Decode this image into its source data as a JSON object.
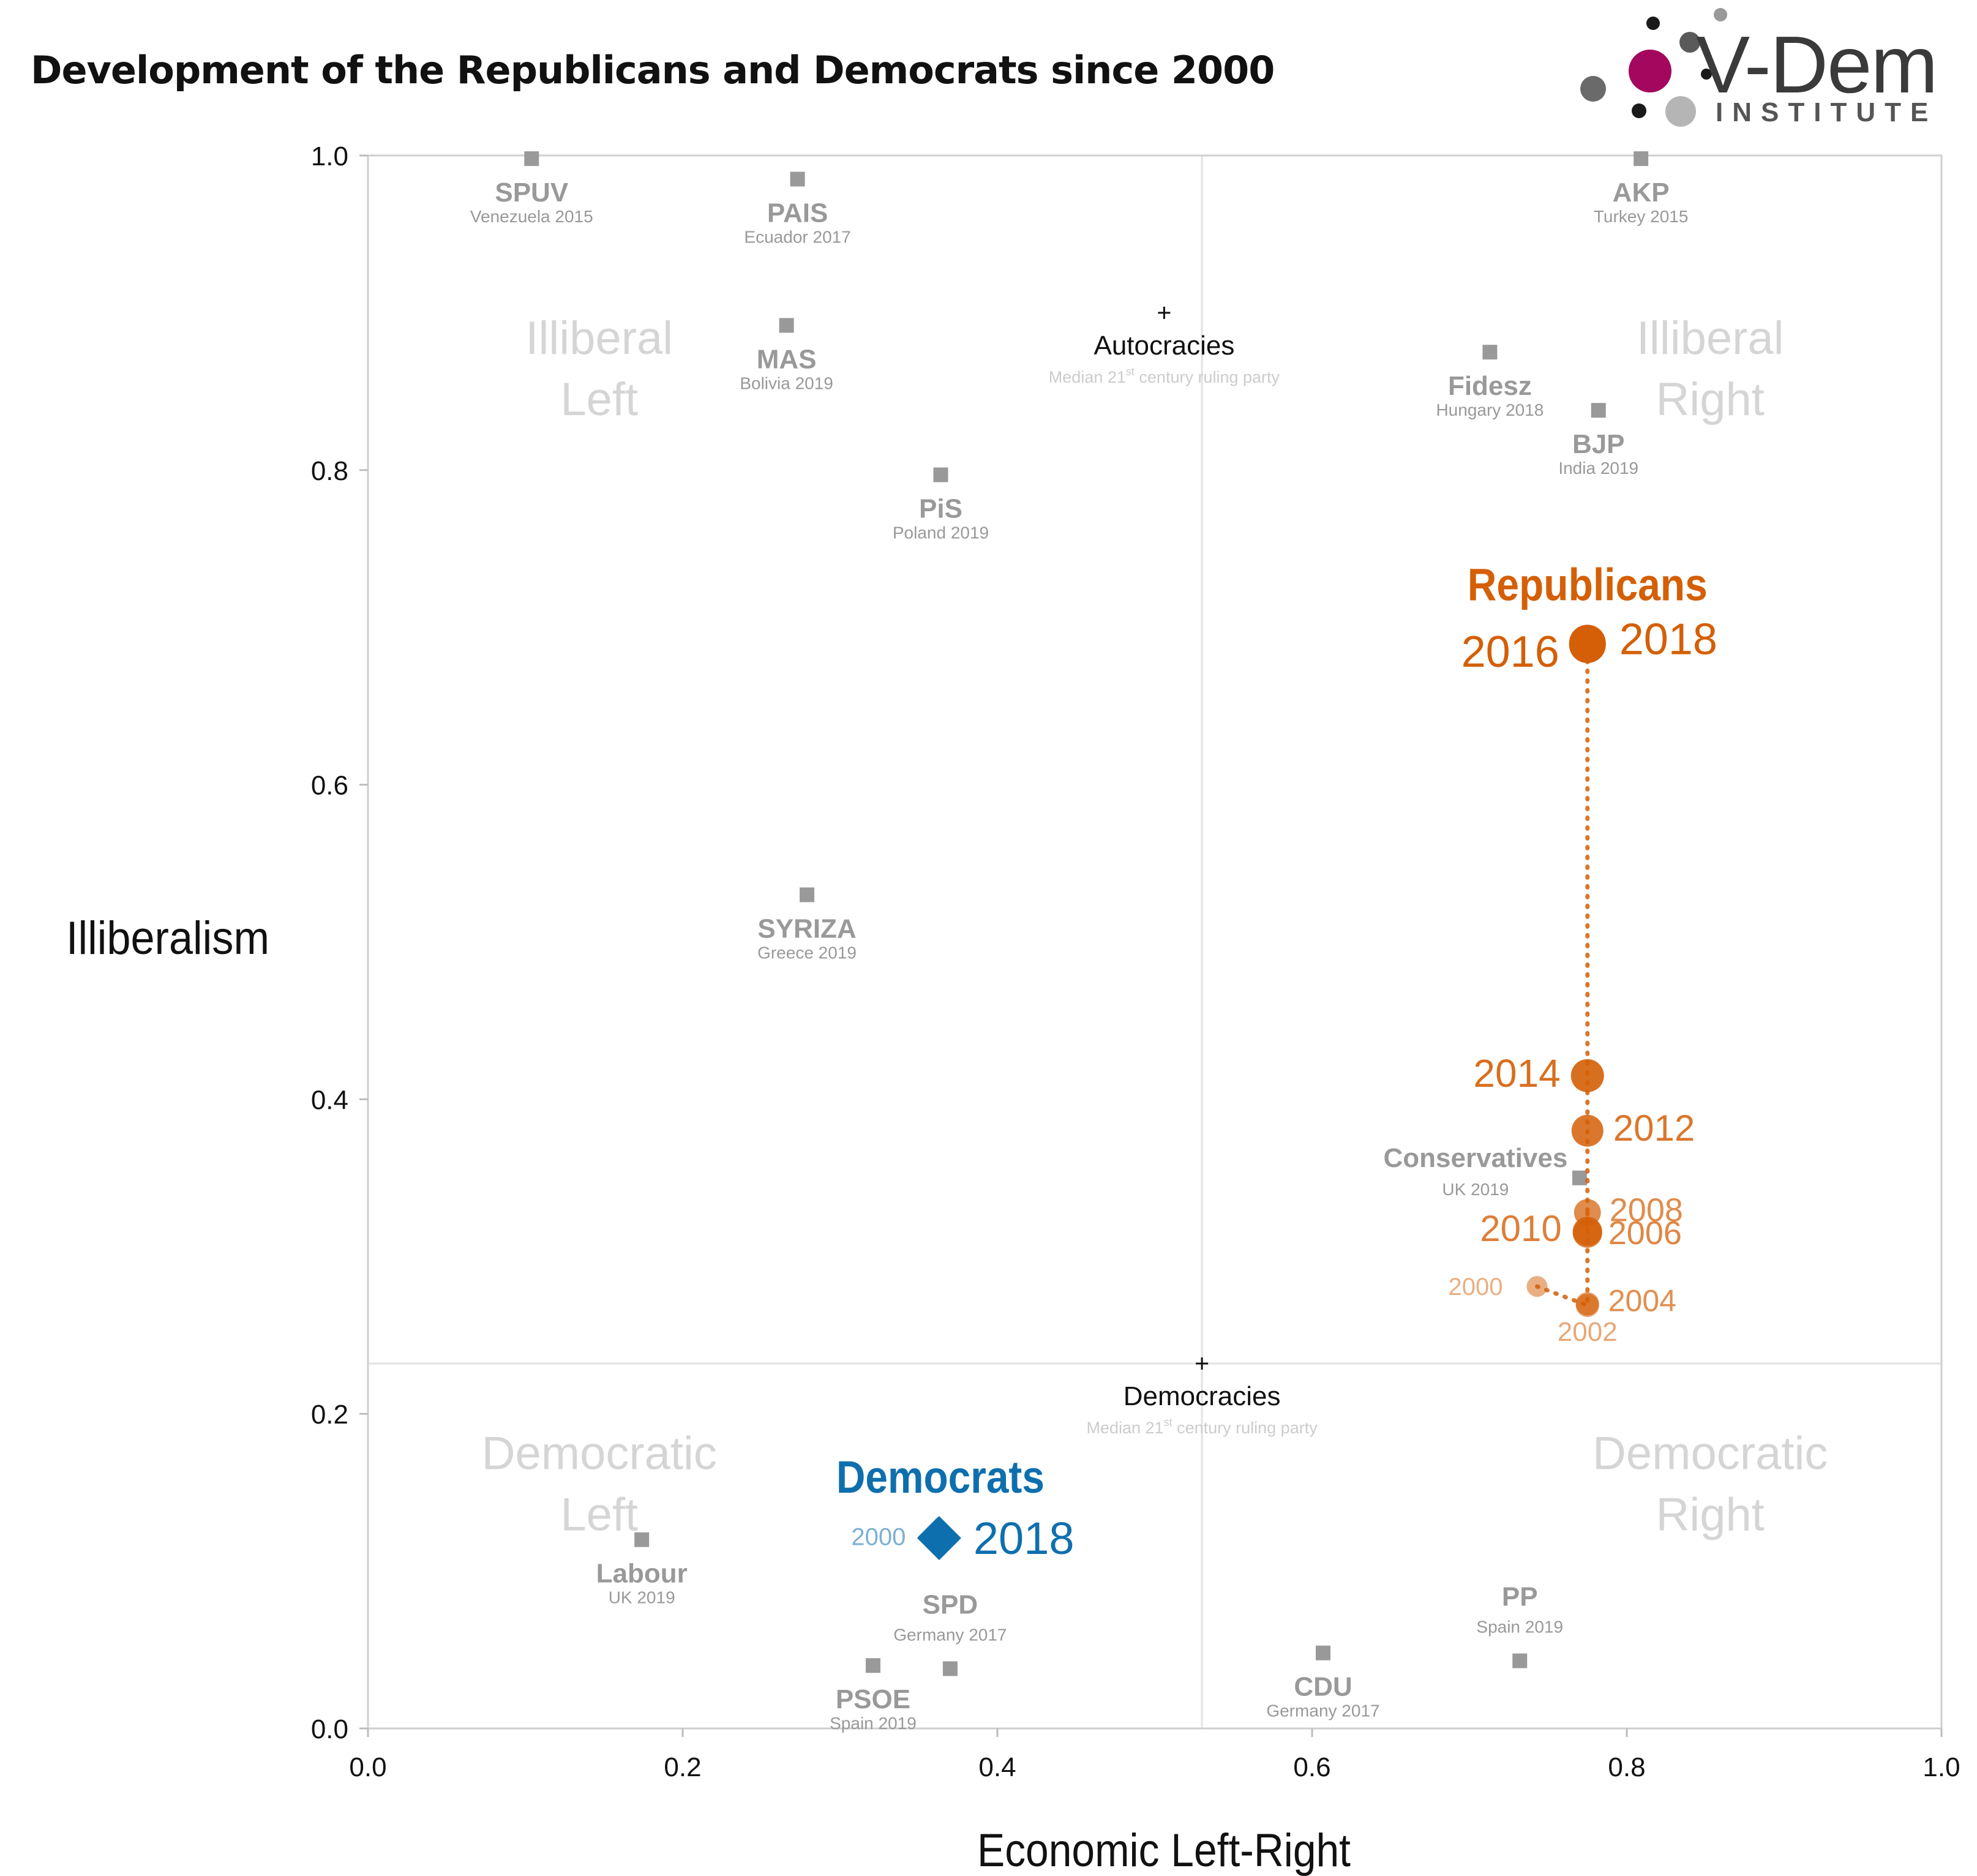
{
  "header": {
    "title": "Development of the Republicans and Democrats since 2000",
    "logo_name": "V-Dem",
    "logo_subtitle": "INSTITUTE"
  },
  "colors": {
    "republicans": "#d45f07",
    "democrats": "#0e6fae",
    "reference_party": "#999999",
    "quadrant_label": "#d5d5d5",
    "logo_magenta": "#a4075e"
  },
  "chart_data": {
    "type": "scatter",
    "title": "Development of the Republicans and Democrats since 2000",
    "xlabel": "Economic Left-Right",
    "ylabel": "Illiberalism",
    "xlim": [
      0,
      1
    ],
    "ylim": [
      0,
      1
    ],
    "xticks": [
      "0.0",
      "0.2",
      "0.4",
      "0.6",
      "0.8",
      "1.0"
    ],
    "yticks": [
      "0.0",
      "0.2",
      "0.4",
      "0.6",
      "0.8",
      "1.0"
    ],
    "grid": false,
    "legend": "none",
    "reference_lines": [
      {
        "name": "Autocracies",
        "note": "Median 21st century ruling party",
        "x": 0.506,
        "y": 0.9
      },
      {
        "name": "Democracies",
        "note": "Median 21st century ruling party",
        "x": 0.53,
        "y": 0.232
      }
    ],
    "quadrant_labels": [
      {
        "line1": "Illiberal",
        "line2": "Left",
        "x": 0.147,
        "y": 0.87
      },
      {
        "line1": "Illiberal",
        "line2": "Right",
        "x": 0.853,
        "y": 0.87
      },
      {
        "line1": "Democratic",
        "line2": "Left",
        "x": 0.147,
        "y": 0.161
      },
      {
        "line1": "Democratic",
        "line2": "Right",
        "x": 0.853,
        "y": 0.161
      }
    ],
    "series": [
      {
        "name": "Republicans",
        "marker": "circle",
        "points": [
          {
            "label": "2000",
            "x": 0.743,
            "y": 0.281
          },
          {
            "label": "2002",
            "x": 0.775,
            "y": 0.269
          },
          {
            "label": "2004",
            "x": 0.775,
            "y": 0.27
          },
          {
            "label": "2006",
            "x": 0.775,
            "y": 0.315
          },
          {
            "label": "2008",
            "x": 0.775,
            "y": 0.328
          },
          {
            "label": "2010",
            "x": 0.775,
            "y": 0.316
          },
          {
            "label": "2012",
            "x": 0.775,
            "y": 0.38
          },
          {
            "label": "2014",
            "x": 0.775,
            "y": 0.415
          },
          {
            "label": "2016",
            "x": 0.775,
            "y": 0.689
          },
          {
            "label": "2018",
            "x": 0.775,
            "y": 0.69
          }
        ]
      },
      {
        "name": "Democrats",
        "marker": "diamond",
        "points": [
          {
            "label": "2000",
            "x": 0.362,
            "y": 0.122
          },
          {
            "label": "2018",
            "x": 0.363,
            "y": 0.121
          }
        ]
      }
    ],
    "reference_parties": [
      {
        "name": "SPUV",
        "country": "Venezuela 2015",
        "x": 0.104,
        "y": 0.998
      },
      {
        "name": "PAIS",
        "country": "Ecuador 2017",
        "x": 0.273,
        "y": 0.985
      },
      {
        "name": "MAS",
        "country": "Bolivia 2019",
        "x": 0.266,
        "y": 0.892
      },
      {
        "name": "PiS",
        "country": "Poland 2019",
        "x": 0.364,
        "y": 0.797
      },
      {
        "name": "SYRIZA",
        "country": "Greece 2019",
        "x": 0.279,
        "y": 0.53
      },
      {
        "name": "AKP",
        "country": "Turkey 2015",
        "x": 0.809,
        "y": 0.998
      },
      {
        "name": "Fidesz",
        "country": "Hungary 2018",
        "x": 0.713,
        "y": 0.875
      },
      {
        "name": "BJP",
        "country": "India 2019",
        "x": 0.782,
        "y": 0.838
      },
      {
        "name": "Conservatives",
        "country": "UK 2019",
        "x": 0.77,
        "y": 0.35
      },
      {
        "name": "Labour",
        "country": "UK 2019",
        "x": 0.174,
        "y": 0.12
      },
      {
        "name": "SPD",
        "country": "Germany 2017",
        "x": 0.37,
        "y": 0.038
      },
      {
        "name": "PSOE",
        "country": "Spain 2019",
        "x": 0.321,
        "y": 0.04
      },
      {
        "name": "CDU",
        "country": "Germany 2017",
        "x": 0.607,
        "y": 0.048
      },
      {
        "name": "PP",
        "country": "Spain 2019",
        "x": 0.732,
        "y": 0.043
      }
    ]
  }
}
